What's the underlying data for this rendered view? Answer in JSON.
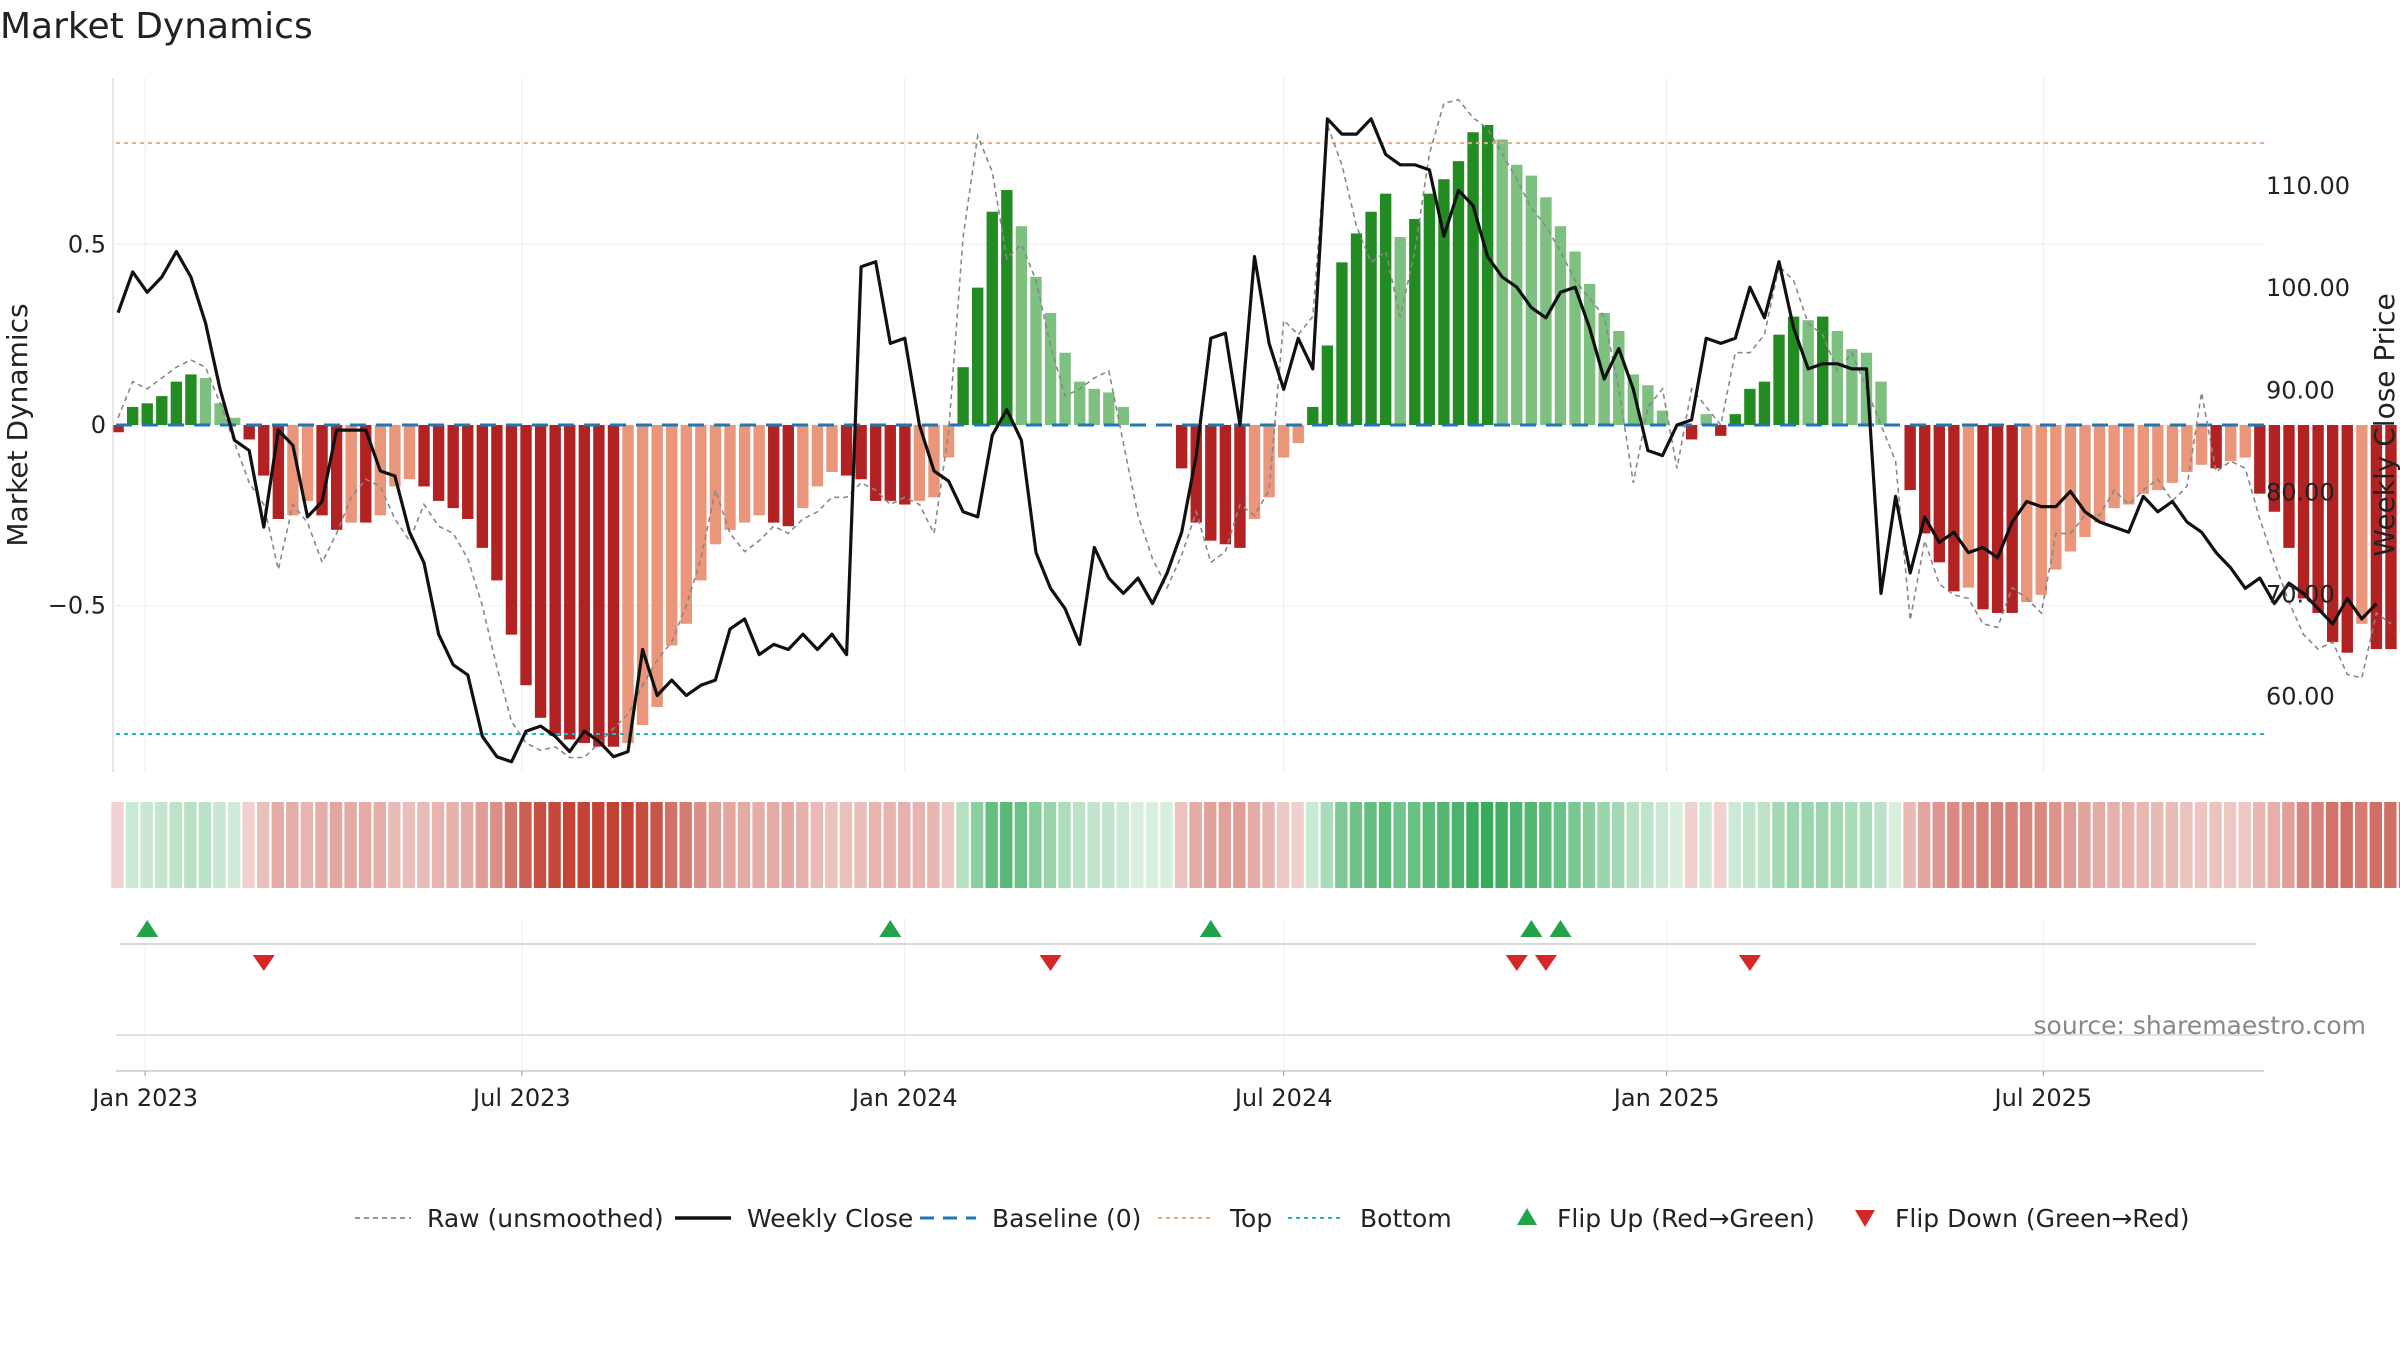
{
  "title": "Market Dynamics",
  "source": "source: sharemaestro.com",
  "colors": {
    "green_dark": "#228B22",
    "green_light": "#7DC07F",
    "red_dark": "#B22222",
    "red_light": "#E9967A",
    "top_line": "#F4A582",
    "bottom_line": "#1FB5C8",
    "baseline": "#1F77B4",
    "close_line": "#111111",
    "raw_line": "#888888",
    "flip_up": "#22A34A",
    "flip_down": "#D62728"
  },
  "chart_data": {
    "type": "bar",
    "title": "Market Dynamics",
    "ylabel_left": "Market Dynamics",
    "ylabel_right": "Weekly Close Price",
    "left_yticks": [
      0.5,
      0,
      -0.5
    ],
    "left_ytick_labels": [
      "0.5",
      "0",
      "−0.5"
    ],
    "right_yticks": [
      110,
      100,
      90,
      80,
      70,
      60
    ],
    "right_ytick_labels": [
      "110.00",
      "100.00",
      "90.00",
      "80.00",
      "70.00",
      "60.00"
    ],
    "ylim_left": [
      -0.96,
      0.96
    ],
    "ylim_right": [
      52.5,
      120.5
    ],
    "xlim": [
      "2022-12-18",
      "2025-10-15"
    ],
    "x_ticks": [
      "2023-01-01",
      "2023-07-01",
      "2024-01-01",
      "2024-07-01",
      "2025-01-01",
      "2025-07-01"
    ],
    "x_tick_labels": [
      "Jan 2023",
      "Jul 2023",
      "Jan 2024",
      "Jul 2024",
      "Jan 2025",
      "Jul 2025"
    ],
    "start_date": "2022-12-19",
    "week_step_days": 7,
    "top_level": 0.78,
    "bottom_level": -0.855,
    "baseline_level": 0,
    "series": [
      {
        "name": "Market Dynamics",
        "values": [
          -0.02,
          0.05,
          0.06,
          0.08,
          0.12,
          0.14,
          0.13,
          0.06,
          0.02,
          -0.04,
          -0.14,
          -0.26,
          -0.25,
          -0.21,
          -0.25,
          -0.29,
          -0.27,
          -0.27,
          -0.25,
          -0.17,
          -0.15,
          -0.17,
          -0.21,
          -0.23,
          -0.26,
          -0.34,
          -0.43,
          -0.58,
          -0.72,
          -0.81,
          -0.86,
          -0.87,
          -0.88,
          -0.89,
          -0.89,
          -0.88,
          -0.83,
          -0.78,
          -0.61,
          -0.55,
          -0.43,
          -0.33,
          -0.29,
          -0.27,
          -0.25,
          -0.27,
          -0.28,
          -0.23,
          -0.17,
          -0.13,
          -0.14,
          -0.15,
          -0.21,
          -0.21,
          -0.22,
          -0.21,
          -0.2,
          -0.09,
          0.16,
          0.38,
          0.59,
          0.65,
          0.55,
          0.41,
          0.31,
          0.2,
          0.12,
          0.1,
          0.09,
          0.05,
          0,
          0,
          0,
          -0.12,
          -0.27,
          -0.32,
          -0.33,
          -0.34,
          -0.26,
          -0.2,
          -0.09,
          -0.05,
          0.05,
          0.22,
          0.45,
          0.53,
          0.59,
          0.64,
          0.52,
          0.57,
          0.64,
          0.68,
          0.73,
          0.81,
          0.83,
          0.79,
          0.72,
          0.69,
          0.63,
          0.55,
          0.48,
          0.39,
          0.31,
          0.26,
          0.14,
          0.11,
          0.04,
          0,
          -0.04,
          0.03,
          -0.03,
          0.03,
          0.1,
          0.12,
          0.25,
          0.3,
          0.29,
          0.3,
          0.26,
          0.21,
          0.2,
          0.12,
          0,
          -0.18,
          -0.3,
          -0.38,
          -0.46,
          -0.45,
          -0.51,
          -0.52,
          -0.52,
          -0.49,
          -0.47,
          -0.4,
          -0.35,
          -0.31,
          -0.27,
          -0.23,
          -0.22,
          -0.19,
          -0.18,
          -0.16,
          -0.13,
          -0.11,
          -0.12,
          -0.1,
          -0.09,
          -0.19,
          -0.24,
          -0.34,
          -0.48,
          -0.52,
          -0.6,
          -0.63,
          -0.55,
          -0.62,
          -0.62,
          -0.58
        ]
      },
      {
        "name": "Raw (unsmoothed)",
        "values": [
          0.02,
          0.12,
          0.1,
          0.13,
          0.16,
          0.18,
          0.16,
          0.06,
          -0.05,
          -0.16,
          -0.22,
          -0.4,
          -0.22,
          -0.27,
          -0.38,
          -0.3,
          -0.2,
          -0.15,
          -0.17,
          -0.26,
          -0.32,
          -0.22,
          -0.28,
          -0.3,
          -0.37,
          -0.5,
          -0.67,
          -0.82,
          -0.88,
          -0.9,
          -0.89,
          -0.92,
          -0.92,
          -0.88,
          -0.84,
          -0.8,
          -0.72,
          -0.65,
          -0.6,
          -0.5,
          -0.37,
          -0.18,
          -0.3,
          -0.35,
          -0.32,
          -0.28,
          -0.3,
          -0.26,
          -0.24,
          -0.2,
          -0.2,
          -0.16,
          -0.18,
          -0.22,
          -0.2,
          -0.22,
          -0.3,
          -0.02,
          0.52,
          0.8,
          0.7,
          0.46,
          0.5,
          0.4,
          0.22,
          0.08,
          0.1,
          0.13,
          0.15,
          -0.05,
          -0.25,
          -0.37,
          -0.45,
          -0.36,
          -0.24,
          -0.38,
          -0.35,
          -0.22,
          -0.25,
          -0.18,
          0.29,
          0.25,
          0.3,
          0.83,
          0.72,
          0.55,
          0.45,
          0.48,
          0.3,
          0.48,
          0.75,
          0.89,
          0.9,
          0.85,
          0.82,
          0.75,
          0.68,
          0.6,
          0.55,
          0.48,
          0.4,
          0.35,
          0.3,
          0.1,
          -0.16,
          0.05,
          0.1,
          -0.12,
          0.1,
          0.05,
          0,
          0.2,
          0.2,
          0.25,
          0.44,
          0.4,
          0.28,
          0.25,
          0.15,
          0.2,
          0.1,
          0,
          -0.1,
          -0.54,
          -0.32,
          -0.44,
          -0.47,
          -0.48,
          -0.55,
          -0.56,
          -0.45,
          -0.48,
          -0.52,
          -0.3,
          -0.3,
          -0.25,
          -0.25,
          -0.18,
          -0.22,
          -0.18,
          -0.15,
          -0.21,
          -0.17,
          0.09,
          -0.13,
          -0.1,
          -0.12,
          -0.26,
          -0.38,
          -0.49,
          -0.58,
          -0.62,
          -0.6,
          -0.69,
          -0.7,
          -0.52,
          -0.55
        ]
      },
      {
        "name": "Weekly Close",
        "axis": "right",
        "values": [
          97.5,
          101.5,
          99.5,
          101.0,
          103.5,
          101.0,
          96.5,
          90.0,
          85.0,
          84.0,
          76.5,
          86.0,
          84.5,
          77.5,
          79.0,
          86.0,
          86.0,
          86.0,
          82.0,
          81.5,
          76.0,
          73.0,
          66.0,
          63.0,
          62.0,
          56.0,
          54.0,
          53.5,
          56.5,
          57.0,
          56.0,
          54.5,
          56.5,
          55.5,
          54.0,
          54.5,
          64.5,
          60.0,
          61.5,
          60.0,
          61.0,
          61.5,
          66.5,
          67.5,
          64.0,
          65.0,
          64.5,
          66.0,
          64.5,
          66.0,
          64.0,
          102.0,
          102.5,
          94.5,
          95.0,
          86.5,
          82.0,
          81.0,
          78.0,
          77.5,
          85.5,
          88.0,
          85.0,
          74.0,
          70.5,
          68.5,
          65.0,
          74.5,
          71.5,
          70.0,
          71.5,
          69.0,
          72.0,
          76.0,
          83.5,
          95.0,
          95.5,
          86.5,
          103.0,
          94.5,
          90.0,
          95.0,
          92.0,
          116.5,
          115.0,
          115.0,
          116.5,
          113.0,
          112.0,
          112.0,
          111.5,
          105.0,
          109.5,
          108.0,
          103.0,
          101.0,
          100.0,
          98.0,
          97.0,
          99.5,
          100.0,
          96.0,
          91.0,
          94.0,
          90.0,
          84.0,
          83.5,
          86.5,
          87.0,
          95.0,
          94.5,
          95.0,
          100.0,
          97.0,
          102.5,
          96.0,
          92.0,
          92.5,
          92.5,
          92.0,
          92.0,
          70.0,
          79.5,
          72.0,
          77.5,
          75.0,
          76.0,
          74.0,
          74.5,
          73.5,
          77.0,
          79.0,
          78.5,
          78.5,
          80.0,
          78.0,
          77.0,
          76.5,
          76.0,
          79.5,
          78.0,
          79.0,
          77.0,
          76.0,
          74.0,
          72.5,
          70.5,
          71.5,
          69.0,
          71.0,
          70.0,
          68.5,
          67.0,
          69.5,
          67.5,
          69.0
        ]
      }
    ],
    "regime_strip": "colored bands per week showing the Market Dynamics regime",
    "flip_up_dates": [
      "2023-01-02",
      "2023-12-25",
      "2024-05-27",
      "2024-10-28",
      "2024-11-11"
    ],
    "flip_down_dates": [
      "2023-02-27",
      "2024-03-11",
      "2024-10-21",
      "2024-11-04",
      "2025-02-10"
    ],
    "legend_position": "bottom-center"
  },
  "legend": [
    {
      "label": "Raw (unsmoothed)",
      "kind": "dashed-gray"
    },
    {
      "label": "Weekly Close",
      "kind": "solid-black"
    },
    {
      "label": "Baseline (0)",
      "kind": "dashed-blue"
    },
    {
      "label": "Top",
      "kind": "dotted-orange"
    },
    {
      "label": "Bottom",
      "kind": "dotted-cyan"
    },
    {
      "label": "Flip Up (Red→Green)",
      "kind": "triangle-up"
    },
    {
      "label": "Flip Down (Green→Red)",
      "kind": "triangle-down"
    }
  ]
}
